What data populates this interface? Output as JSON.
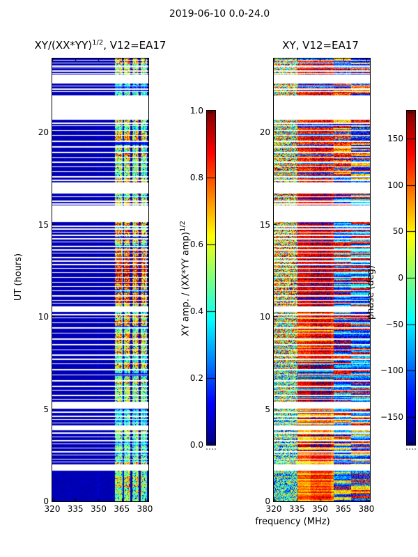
{
  "figure": {
    "suptitle": "2019-06-10 0.0-24.0",
    "background": "#ffffff"
  },
  "chart_data": {
    "type": "heatmap",
    "colormap": "jet",
    "suptitle": "2019-06-10 0.0-24.0",
    "panels": [
      {
        "id": "amp",
        "title_base": "XY/(XX*YY)",
        "title_sup": "1/2",
        "title_rest": ", V12=EA17",
        "xlabel": "",
        "x_axis": {
          "range": [
            320,
            382.3
          ],
          "ticks": [
            320,
            335,
            350,
            365,
            380
          ],
          "tick_labels": [
            "320",
            "335",
            "350",
            "365",
            "380"
          ]
        },
        "y_axis": {
          "label": "UT (hours)",
          "range": [
            0,
            24
          ],
          "ticks": [
            0,
            5,
            10,
            15,
            20
          ],
          "tick_labels": [
            "0",
            "5",
            "10",
            "15",
            "20"
          ]
        },
        "colorbar": {
          "label_base": "XY amp. / (XX*YY amp)",
          "label_sup": "1/2",
          "range": [
            0,
            1
          ],
          "ticks": [
            1.0,
            0.8,
            0.6,
            0.4,
            0.2,
            0.0
          ],
          "tick_labels": [
            "1.0",
            "0.8",
            "0.6",
            "0.4",
            "0.2",
            "0.0"
          ]
        },
        "content": {
          "background_level": 0.04,
          "band_freq_range": [
            360.8,
            381.4
          ],
          "band_gaps": [
            [
              365.4,
              366.6
            ],
            [
              370.6,
              371.9
            ],
            [
              375.9,
              377.3
            ]
          ],
          "band_intensity_by_ut": [
            [
              0,
              2.1,
              0.5
            ],
            [
              2.1,
              5.0,
              0.45
            ],
            [
              5.4,
              8.2,
              0.52
            ],
            [
              8.2,
              10.3,
              0.55
            ],
            [
              10.57,
              11.3,
              0.7
            ],
            [
              11.3,
              13.9,
              0.82
            ],
            [
              13.9,
              15.17,
              0.6
            ],
            [
              16.04,
              16.72,
              0.5
            ],
            [
              17.3,
              20.72,
              0.52
            ],
            [
              22.0,
              22.68,
              0.5
            ],
            [
              23.13,
              24,
              0.58
            ]
          ]
        }
      },
      {
        "id": "phase",
        "title": "XY, V12=EA17",
        "xlabel": "frequency (MHz)",
        "x_axis": {
          "range": [
            320,
            382.3
          ],
          "ticks": [
            320,
            335,
            350,
            365,
            380
          ],
          "tick_labels": [
            "320",
            "335",
            "350",
            "365",
            "380"
          ]
        },
        "y_axis": {
          "label": "",
          "range": [
            0,
            24
          ],
          "ticks": [
            0,
            5,
            10,
            15,
            20
          ],
          "tick_labels": [
            "0",
            "5",
            "10",
            "15",
            "20"
          ]
        },
        "colorbar": {
          "label": "phase (deg)",
          "range": [
            -180,
            180
          ],
          "ticks": [
            150,
            100,
            50,
            0,
            -50,
            -100,
            -150
          ],
          "tick_labels": [
            "150",
            "100",
            "50",
            "0",
            "−50",
            "−100",
            "−150"
          ]
        },
        "content": {
          "seg_bounds": [
            335.5,
            359
          ],
          "regions": [
            {
              "ut": [
                17.28,
                24.0
              ],
              "seg1": {
                "base": 40,
                "spread": 280
              },
              "seg2": {
                "main": 130,
                "alt": -110,
                "p": 0.28,
                "jit": 90,
                "core": 15
              },
              "seg3": {
                "choices": [
                  140,
                  -100,
                  60,
                  -140,
                  110
                ],
                "jit": 100
              }
            },
            {
              "ut": [
                10.57,
                17.28
              ],
              "seg1": {
                "base": 60,
                "spread": 260
              },
              "seg2": {
                "main": 145,
                "alt": -120,
                "p": 0.1,
                "jit": 60,
                "core": 15
              },
              "seg3": {
                "choices": [
                  -90,
                  -130,
                  150,
                  -50,
                  140
                ],
                "jit": 80
              }
            },
            {
              "ut": [
                7.6,
                10.57
              ],
              "seg1": {
                "base": 30,
                "spread": 270
              },
              "seg2": {
                "main": 130,
                "alt": 60,
                "p": 0.3,
                "jit": 70,
                "core": 20
              },
              "seg3": {
                "choices": [
                  -110,
                  150,
                  -60,
                  130,
                  -140
                ],
                "jit": 90
              }
            },
            {
              "ut": [
                5.4,
                7.6
              ],
              "seg1": {
                "base": 0,
                "spread": 260
              },
              "seg2": {
                "main": 150,
                "alt": -60,
                "p": 0.2,
                "jit": 60,
                "core": 20
              },
              "seg3": {
                "choices": [
                  -100,
                  140,
                  -60,
                  -130
                ],
                "jit": 90
              }
            },
            {
              "ut": [
                2.6,
                5.4
              ],
              "seg1": {
                "base": -20,
                "spread": 240
              },
              "seg2": {
                "main": 60,
                "alt": 150,
                "p": 0.35,
                "jit": 70,
                "core": 25
              },
              "seg3": {
                "choices": [
                  -80,
                  60,
                  -120,
                  140
                ],
                "jit": 90
              }
            },
            {
              "ut": [
                0,
                2.6
              ],
              "seg1": {
                "base": -30,
                "spread": 230
              },
              "seg2": {
                "main": 105,
                "alt": 55,
                "p": 0.4,
                "jit": 55,
                "core": 25
              },
              "seg3": {
                "choices": [
                  -80,
                  140,
                  -120,
                  50
                ],
                "jit": 100
              }
            }
          ]
        }
      }
    ],
    "data_gaps_ut": [
      [
        1.7,
        2.0
      ],
      [
        3.89,
        4.11
      ],
      [
        5.05,
        5.4
      ],
      [
        10.3,
        10.57
      ],
      [
        15.17,
        16.04
      ],
      [
        16.72,
        17.28
      ],
      [
        20.72,
        22.0
      ],
      [
        22.68,
        23.13
      ]
    ],
    "thin_gap_lines_ut": [
      23.92,
      23.79,
      23.64,
      23.5,
      23.36,
      23.22,
      22.52,
      22.37,
      22.22,
      20.52,
      20.36,
      20.12,
      19.86,
      19.56,
      19.26,
      18.96,
      18.66,
      18.42,
      18.16,
      17.9,
      17.62,
      17.44,
      16.52,
      16.32,
      16.16,
      14.96,
      14.81,
      14.62,
      14.44,
      14.26,
      14.06,
      13.86,
      13.66,
      13.46,
      13.26,
      13.06,
      12.86,
      12.66,
      12.42,
      12.16,
      11.9,
      11.66,
      11.42,
      11.16,
      10.92,
      10.74,
      10.16,
      9.96,
      9.7,
      9.42,
      9.12,
      8.82,
      8.52,
      8.22,
      7.96,
      7.72,
      7.46,
      7.16,
      6.86,
      6.56,
      6.26,
      6.02,
      5.76,
      5.56,
      4.86,
      4.66,
      4.46,
      4.26,
      3.72,
      3.52,
      3.32,
      3.12,
      2.92,
      2.72,
      2.52,
      2.32,
      2.16
    ]
  }
}
